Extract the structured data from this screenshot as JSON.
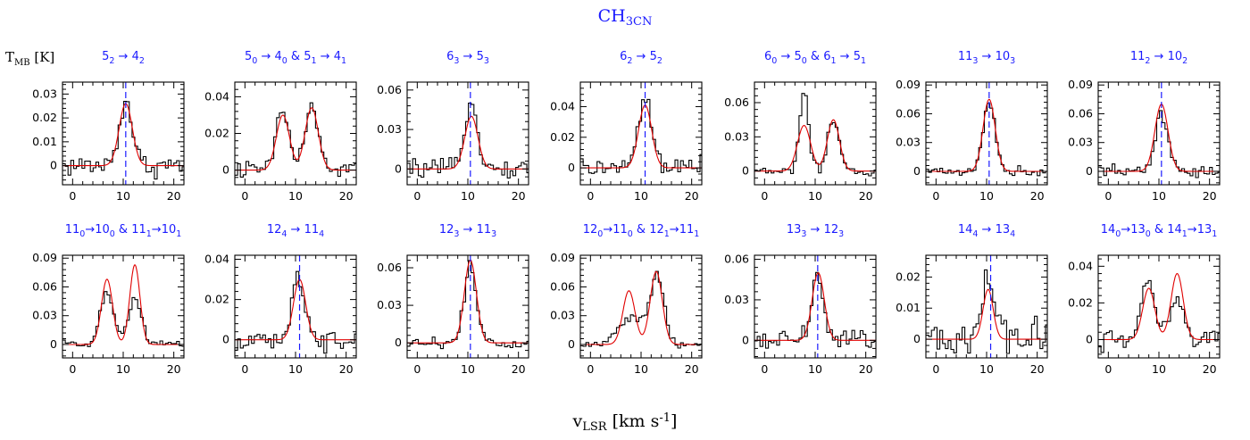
{
  "figure": {
    "title": "CH3CN",
    "ylabel": "T_MB [K]",
    "xlabel": "v_LSR [km s^-1]",
    "colors": {
      "observed": "#000000",
      "fit": "#e00000",
      "systemic_velocity": "#1a1aff",
      "titles": "#1a1aff"
    }
  },
  "chart_data": [
    {
      "type": "line",
      "title": "5_2 → 4_2",
      "xlim": [
        -2,
        22
      ],
      "xticks": [
        0,
        10,
        20
      ],
      "yticks": [
        0,
        0.01,
        0.02,
        0.03
      ],
      "ylim": [
        -0.008,
        0.035
      ],
      "vsys": 10.5,
      "series": [
        {
          "role": "observed",
          "noise": 0.003,
          "lines": [
            {
              "c": 10.5,
              "a": 0.027,
              "w": 1.3
            }
          ]
        },
        {
          "role": "fit",
          "lines": [
            {
              "c": 10.5,
              "a": 0.026,
              "w": 1.3
            }
          ]
        }
      ]
    },
    {
      "type": "line",
      "title": "5_0 → 4_0 & 5_1 → 4_1",
      "xlim": [
        -2,
        22
      ],
      "xticks": [
        0,
        10,
        20
      ],
      "yticks": [
        0,
        0.02,
        0.04
      ],
      "ylim": [
        -0.008,
        0.048
      ],
      "vsys": null,
      "series": [
        {
          "role": "observed",
          "noise": 0.003,
          "lines": [
            {
              "c": 7.5,
              "a": 0.032,
              "w": 1.3
            },
            {
              "c": 13.2,
              "a": 0.034,
              "w": 1.3
            }
          ]
        },
        {
          "role": "fit",
          "lines": [
            {
              "c": 7.5,
              "a": 0.03,
              "w": 1.3
            },
            {
              "c": 13.2,
              "a": 0.034,
              "w": 1.3
            }
          ]
        }
      ]
    },
    {
      "type": "line",
      "title": "6_3 → 5_3",
      "xlim": [
        -2,
        22
      ],
      "xticks": [
        0,
        10,
        20
      ],
      "yticks": [
        0,
        0.03,
        0.06
      ],
      "ylim": [
        -0.012,
        0.066
      ],
      "vsys": 10.5,
      "series": [
        {
          "role": "observed",
          "noise": 0.004,
          "lines": [
            {
              "c": 10.7,
              "a": 0.055,
              "w": 1.2
            }
          ]
        },
        {
          "role": "fit",
          "lines": [
            {
              "c": 10.7,
              "a": 0.04,
              "w": 1.3
            }
          ]
        }
      ]
    },
    {
      "type": "line",
      "title": "6_2 → 5_2",
      "xlim": [
        -2,
        22
      ],
      "xticks": [
        0,
        10,
        20
      ],
      "yticks": [
        0,
        0.02,
        0.04
      ],
      "ylim": [
        -0.011,
        0.056
      ],
      "vsys": 10.8,
      "series": [
        {
          "role": "observed",
          "noise": 0.004,
          "lines": [
            {
              "c": 10.8,
              "a": 0.045,
              "w": 1.3
            }
          ]
        },
        {
          "role": "fit",
          "lines": [
            {
              "c": 10.8,
              "a": 0.041,
              "w": 1.3
            }
          ]
        }
      ]
    },
    {
      "type": "line",
      "title": "6_0 → 5_0 & 6_1 → 5_1",
      "xlim": [
        -2,
        22
      ],
      "xticks": [
        0,
        10,
        20
      ],
      "yticks": [
        0,
        0.03,
        0.06
      ],
      "ylim": [
        -0.012,
        0.078
      ],
      "vsys": null,
      "series": [
        {
          "role": "observed",
          "noise": 0.003,
          "lines": [
            {
              "c": 7.8,
              "a": 0.068,
              "w": 0.9
            },
            {
              "c": 13.6,
              "a": 0.044,
              "w": 1.1
            }
          ]
        },
        {
          "role": "fit",
          "lines": [
            {
              "c": 7.8,
              "a": 0.04,
              "w": 1.3
            },
            {
              "c": 13.6,
              "a": 0.045,
              "w": 1.2
            }
          ]
        }
      ]
    },
    {
      "type": "line",
      "title": "11_3 → 10_3",
      "xlim": [
        -2,
        22
      ],
      "xticks": [
        0,
        10,
        20
      ],
      "yticks": [
        0,
        0.03,
        0.06,
        0.09
      ],
      "ylim": [
        -0.014,
        0.093
      ],
      "vsys": 10.5,
      "series": [
        {
          "role": "observed",
          "noise": 0.003,
          "lines": [
            {
              "c": 10.5,
              "a": 0.072,
              "w": 1.2
            }
          ]
        },
        {
          "role": "fit",
          "lines": [
            {
              "c": 10.5,
              "a": 0.075,
              "w": 1.2
            }
          ]
        }
      ]
    },
    {
      "type": "line",
      "title": "11_2 → 10_2",
      "xlim": [
        -2,
        22
      ],
      "xticks": [
        0,
        10,
        20
      ],
      "yticks": [
        0,
        0.03,
        0.06,
        0.09
      ],
      "ylim": [
        -0.014,
        0.093
      ],
      "vsys": 10.5,
      "series": [
        {
          "role": "observed",
          "noise": 0.004,
          "lines": [
            {
              "c": 10.5,
              "a": 0.06,
              "w": 1.2
            }
          ]
        },
        {
          "role": "fit",
          "lines": [
            {
              "c": 10.5,
              "a": 0.07,
              "w": 1.3
            }
          ]
        }
      ]
    },
    {
      "type": "line",
      "title": "11_0→10_0 & 11_1→10_1",
      "xlim": [
        -2,
        22
      ],
      "xticks": [
        0,
        10,
        20
      ],
      "yticks": [
        0,
        0.03,
        0.06,
        0.09
      ],
      "ylim": [
        -0.014,
        0.093
      ],
      "vsys": null,
      "series": [
        {
          "role": "observed",
          "noise": 0.003,
          "lines": [
            {
              "c": 6.8,
              "a": 0.055,
              "w": 1.3
            },
            {
              "c": 12.3,
              "a": 0.047,
              "w": 1.3
            }
          ]
        },
        {
          "role": "fit",
          "lines": [
            {
              "c": 6.8,
              "a": 0.068,
              "w": 1.1
            },
            {
              "c": 12.3,
              "a": 0.083,
              "w": 1.0
            }
          ]
        }
      ]
    },
    {
      "type": "line",
      "title": "12_4 → 11_4",
      "xlim": [
        -2,
        22
      ],
      "xticks": [
        0,
        10,
        20
      ],
      "yticks": [
        0,
        0.02,
        0.04
      ],
      "ylim": [
        -0.009,
        0.042
      ],
      "vsys": 10.8,
      "series": [
        {
          "role": "observed",
          "noise": 0.004,
          "lines": [
            {
              "c": 10.5,
              "a": 0.027,
              "w": 1.5
            }
          ]
        },
        {
          "role": "fit",
          "lines": [
            {
              "c": 10.8,
              "a": 0.03,
              "w": 1.2
            }
          ]
        }
      ]
    },
    {
      "type": "line",
      "title": "12_3 → 11_3",
      "xlim": [
        -2,
        22
      ],
      "xticks": [
        0,
        10,
        20
      ],
      "yticks": [
        0,
        0.03,
        0.06
      ],
      "ylim": [
        -0.012,
        0.07
      ],
      "vsys": 10.5,
      "series": [
        {
          "role": "observed",
          "noise": 0.003,
          "lines": [
            {
              "c": 10.5,
              "a": 0.062,
              "w": 1.2
            }
          ]
        },
        {
          "role": "fit",
          "lines": [
            {
              "c": 10.5,
              "a": 0.066,
              "w": 1.2
            }
          ]
        }
      ]
    },
    {
      "type": "line",
      "title": "12_0→11_0 & 12_1→11_1",
      "xlim": [
        -2,
        22
      ],
      "xticks": [
        0,
        10,
        20
      ],
      "yticks": [
        0,
        0.03,
        0.06,
        0.09
      ],
      "ylim": [
        -0.014,
        0.093
      ],
      "vsys": null,
      "series": [
        {
          "role": "observed",
          "noise": 0.003,
          "lines": [
            {
              "c": 8.3,
              "a": 0.03,
              "w": 2.5
            },
            {
              "c": 13.3,
              "a": 0.07,
              "w": 1.3
            }
          ]
        },
        {
          "role": "fit",
          "lines": [
            {
              "c": 7.6,
              "a": 0.056,
              "w": 1.2
            },
            {
              "c": 13.0,
              "a": 0.076,
              "w": 1.2
            }
          ]
        }
      ]
    },
    {
      "type": "line",
      "title": "13_3 → 12_3",
      "xlim": [
        -2,
        22
      ],
      "xticks": [
        0,
        10,
        20
      ],
      "yticks": [
        0,
        0.03,
        0.06
      ],
      "ylim": [
        -0.013,
        0.063
      ],
      "vsys": 10.5,
      "series": [
        {
          "role": "observed",
          "noise": 0.005,
          "lines": [
            {
              "c": 10.6,
              "a": 0.048,
              "w": 1.2
            }
          ]
        },
        {
          "role": "fit",
          "lines": [
            {
              "c": 10.6,
              "a": 0.05,
              "w": 1.2
            }
          ]
        }
      ]
    },
    {
      "type": "line",
      "title": "14_4 → 13_4",
      "xlim": [
        -2,
        22
      ],
      "xticks": [
        0,
        10,
        20
      ],
      "yticks": [
        0,
        0.01,
        0.02
      ],
      "ylim": [
        -0.006,
        0.027
      ],
      "vsys": 10.8,
      "series": [
        {
          "role": "observed",
          "noise": 0.004,
          "lines": [
            {
              "c": 10.5,
              "a": 0.017,
              "w": 1.5
            }
          ]
        },
        {
          "role": "fit",
          "lines": [
            {
              "c": 10.3,
              "a": 0.016,
              "w": 1.0
            }
          ]
        }
      ]
    },
    {
      "type": "line",
      "title": "14_0→13_0 & 14_1→13_1",
      "xlim": [
        -2,
        22
      ],
      "xticks": [
        0,
        10,
        20
      ],
      "yticks": [
        0,
        0.02,
        0.04
      ],
      "ylim": [
        -0.01,
        0.046
      ],
      "vsys": null,
      "series": [
        {
          "role": "observed",
          "noise": 0.004,
          "lines": [
            {
              "c": 8.0,
              "a": 0.03,
              "w": 1.3
            },
            {
              "c": 13.5,
              "a": 0.02,
              "w": 1.5
            }
          ]
        },
        {
          "role": "fit",
          "lines": [
            {
              "c": 8.0,
              "a": 0.028,
              "w": 1.2
            },
            {
              "c": 13.6,
              "a": 0.036,
              "w": 1.2
            }
          ]
        }
      ]
    }
  ]
}
